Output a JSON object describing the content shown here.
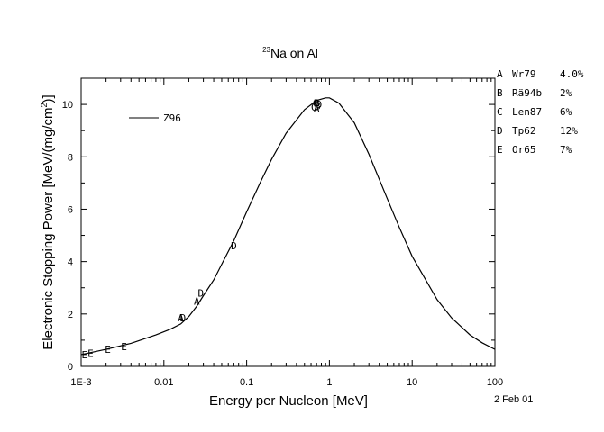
{
  "chart_data": {
    "type": "scatter",
    "title": {
      "superscript": "23",
      "text": "Na on Al"
    },
    "xlabel": "Energy per Nucleon [MeV]",
    "ylabel": {
      "main": "Electronic Stopping Power [MeV/(mg/cm",
      "superscript": "2",
      "tail": ")]"
    },
    "x_scale": "log",
    "xlim": [
      0.001,
      100
    ],
    "ylim": [
      0,
      11
    ],
    "x_ticks": [
      {
        "value": 0.001,
        "label": "1E-3"
      },
      {
        "value": 0.01,
        "label": "0.01"
      },
      {
        "value": 0.1,
        "label": "0.1"
      },
      {
        "value": 1,
        "label": "1"
      },
      {
        "value": 10,
        "label": "10"
      },
      {
        "value": 100,
        "label": "100"
      }
    ],
    "y_ticks": [
      {
        "value": 0,
        "label": "0"
      },
      {
        "value": 2,
        "label": "2"
      },
      {
        "value": 4,
        "label": "4"
      },
      {
        "value": 6,
        "label": "6"
      },
      {
        "value": 8,
        "label": "8"
      },
      {
        "value": 10,
        "label": "10"
      }
    ],
    "grid": false,
    "curve": {
      "name": "Z96",
      "points": [
        [
          0.001,
          0.45
        ],
        [
          0.002,
          0.65
        ],
        [
          0.004,
          0.88
        ],
        [
          0.008,
          1.2
        ],
        [
          0.012,
          1.42
        ],
        [
          0.016,
          1.62
        ],
        [
          0.02,
          1.9
        ],
        [
          0.025,
          2.3
        ],
        [
          0.03,
          2.7
        ],
        [
          0.04,
          3.3
        ],
        [
          0.05,
          3.9
        ],
        [
          0.07,
          4.8
        ],
        [
          0.1,
          5.9
        ],
        [
          0.15,
          7.1
        ],
        [
          0.2,
          7.9
        ],
        [
          0.3,
          8.9
        ],
        [
          0.5,
          9.8
        ],
        [
          0.7,
          10.15
        ],
        [
          0.9,
          10.25
        ],
        [
          1.0,
          10.25
        ],
        [
          1.3,
          10.05
        ],
        [
          2,
          9.3
        ],
        [
          3,
          8.1
        ],
        [
          5,
          6.4
        ],
        [
          7,
          5.3
        ],
        [
          10,
          4.2
        ],
        [
          20,
          2.55
        ],
        [
          30,
          1.85
        ],
        [
          50,
          1.2
        ],
        [
          70,
          0.9
        ],
        [
          100,
          0.65
        ]
      ]
    },
    "legend": {
      "line_label": "Z96",
      "placement": "upper-left"
    },
    "datasets": [
      {
        "marker": "A",
        "ref": "Wr79",
        "uncertainty": "4.0%",
        "points": [
          [
            0.016,
            1.85
          ],
          [
            0.025,
            2.5
          ],
          [
            0.7,
            9.85
          ]
        ]
      },
      {
        "marker": "B",
        "ref": "Rä94b",
        "uncertainty": "2%",
        "points": [
          [
            0.7,
            10.05
          ],
          [
            0.72,
            9.95
          ]
        ]
      },
      {
        "marker": "C",
        "ref": "Len87",
        "uncertainty": "6%",
        "points": [
          [
            0.65,
            9.9
          ],
          [
            0.68,
            10.05
          ]
        ]
      },
      {
        "marker": "D",
        "ref": "Tp62",
        "uncertainty": "12%",
        "points": [
          [
            0.017,
            1.85
          ],
          [
            0.028,
            2.8
          ],
          [
            0.07,
            4.6
          ],
          [
            0.75,
            10.0
          ]
        ]
      },
      {
        "marker": "E",
        "ref": "Or65",
        "uncertainty": "7%",
        "points": [
          [
            0.0011,
            0.45
          ],
          [
            0.0013,
            0.5
          ],
          [
            0.0021,
            0.65
          ],
          [
            0.0033,
            0.75
          ]
        ]
      }
    ],
    "date_stamp": "2 Feb 01"
  }
}
